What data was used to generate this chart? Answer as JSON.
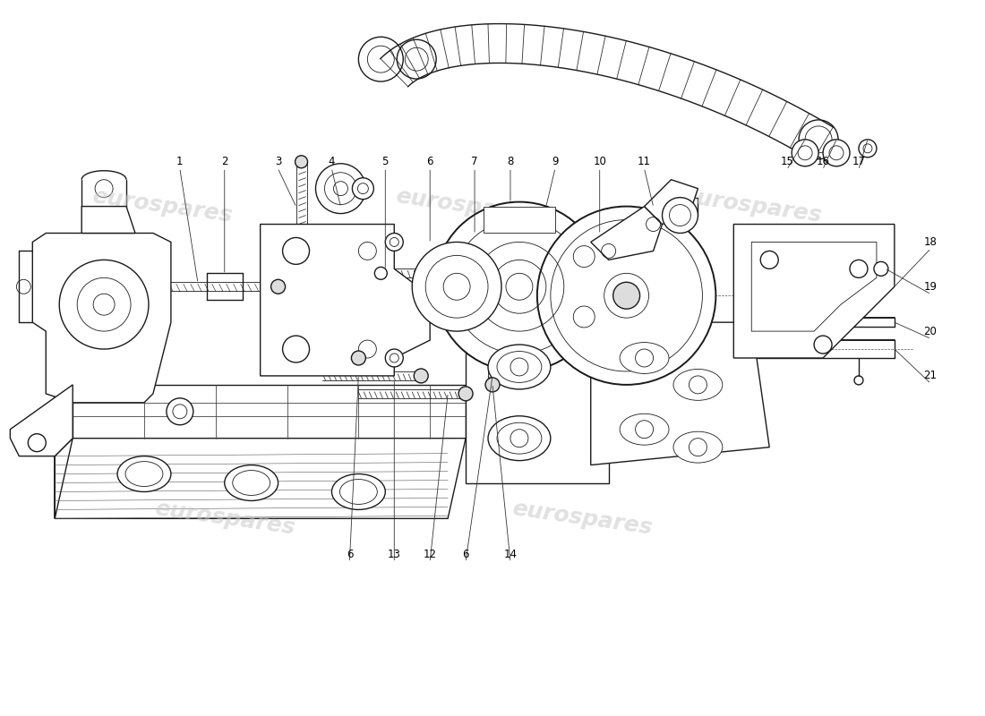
{
  "background_color": "#ffffff",
  "line_color": "#1a1a1a",
  "line_width": 1.0,
  "thin_lw": 0.6,
  "thick_lw": 1.4,
  "watermark_color": "#c8c8c8",
  "watermark_alpha": 0.55,
  "watermark_fontsize": 18,
  "ann_fontsize": 8.5,
  "ann_color": "#000000",
  "fig_width": 11.0,
  "fig_height": 8.0,
  "dpi": 100,
  "xlim": [
    0,
    110
  ],
  "ylim": [
    0,
    80
  ]
}
